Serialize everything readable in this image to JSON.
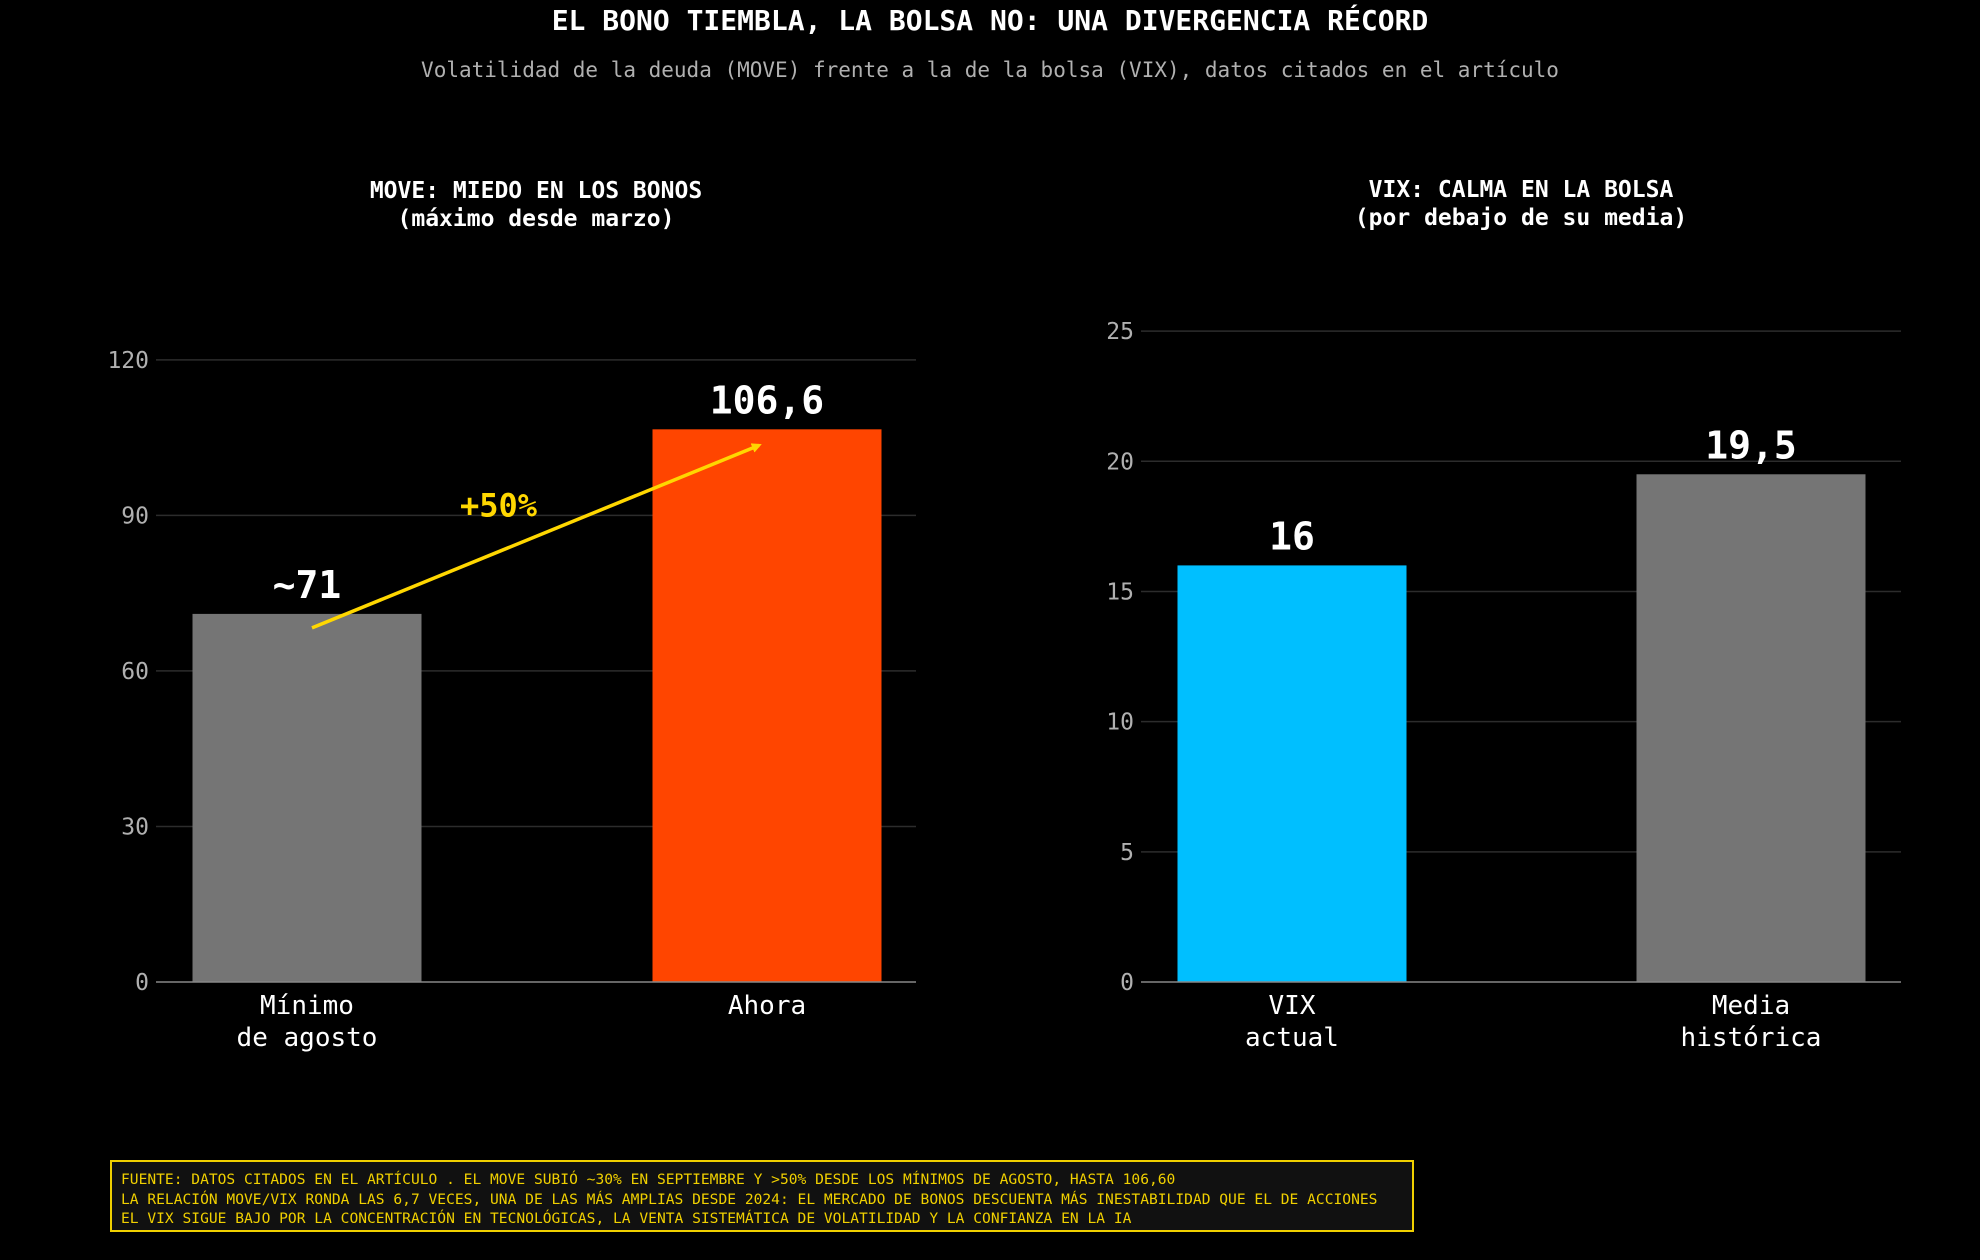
{
  "title": "EL BONO TIEMBLA, LA BOLSA NO: UNA DIVERGENCIA RÉCORD",
  "subtitle": "Volatilidad de la deuda (MOVE) frente a la de la bolsa (VIX), datos citados en el artículo",
  "colors": {
    "background": "#000000",
    "grey": "#757575",
    "orange": "#ff4500",
    "cyan": "#00bfff",
    "yellow": "#ffd700",
    "grid": "#2a2a2a",
    "axis_text": "#b0b0b0"
  },
  "chart_data": [
    {
      "type": "bar",
      "title_lines": [
        "MOVE: MIEDO EN LOS BONOS",
        "(máximo desde marzo)"
      ],
      "categories": [
        [
          "Mínimo",
          "de agosto"
        ],
        [
          "Ahora"
        ]
      ],
      "values": [
        71,
        106.6
      ],
      "value_labels": [
        "~71",
        "106,6"
      ],
      "bar_colors": [
        "#757575",
        "#ff4500"
      ],
      "ylim": [
        0,
        130
      ],
      "yticks": [
        0,
        30,
        60,
        90,
        120
      ],
      "grid": true,
      "annotation": {
        "text": "+50%",
        "from_category": 0,
        "to_category": 1,
        "color": "#ffd700"
      }
    },
    {
      "type": "bar",
      "title_lines": [
        "VIX: CALMA EN LA BOLSA",
        "(por debajo de su media)"
      ],
      "categories": [
        [
          "VIX",
          "actual"
        ],
        [
          "Media",
          "histórica"
        ]
      ],
      "values": [
        16,
        19.5
      ],
      "value_labels": [
        "16",
        "19,5"
      ],
      "bar_colors": [
        "#00bfff",
        "#757575"
      ],
      "ylim": [
        0,
        27
      ],
      "yticks": [
        0,
        5,
        10,
        15,
        20,
        25
      ],
      "grid": true
    }
  ],
  "footnote": [
    "FUENTE: DATOS CITADOS EN EL ARTÍCULO . EL MOVE SUBIÓ ~30% EN SEPTIEMBRE Y >50% DESDE LOS MÍNIMOS DE AGOSTO, HASTA 106,60",
    "LA RELACIÓN MOVE/VIX RONDA LAS 6,7 VECES, UNA DE LAS MÁS AMPLIAS DESDE 2024: EL MERCADO DE BONOS DESCUENTA MÁS INESTABILIDAD QUE EL DE ACCIONES",
    "EL VIX SIGUE BAJO POR LA CONCENTRACIÓN EN TECNOLÓGICAS, LA VENTA SISTEMÁTICA DE VOLATILIDAD Y LA CONFIANZA EN LA IA"
  ]
}
